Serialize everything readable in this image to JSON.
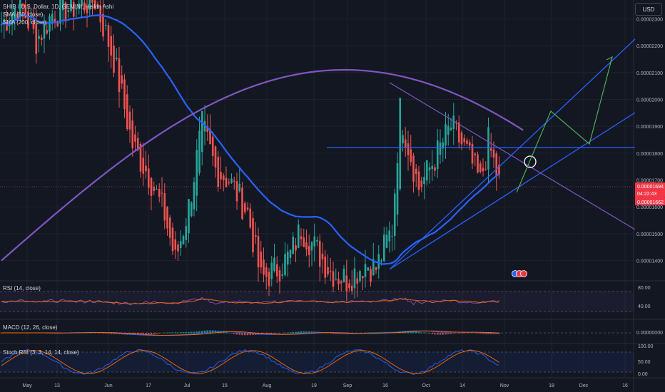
{
  "window": {
    "symbol_title": "SHIB / U.S. Dollar, 1D, GEMINI, Heikin Ashi",
    "indicator_1": "SMA (50, close)",
    "indicator_2": "SMA (200, close)",
    "currency_button": "USD"
  },
  "panes": {
    "rsi_label": "RSI (14, close)",
    "macd_label": "MACD (12, 26, close)",
    "stoch_label": "Stoch RSI (3, 3, 14, 14, close)"
  },
  "price_axis": {
    "ticks": [
      "0.00002300",
      "0.00002200",
      "0.00002100",
      "0.00002000",
      "0.00001900",
      "0.00001800",
      "0.00001700",
      "0.00001600",
      "0.00001500",
      "0.00001400"
    ],
    "last_price": "0.00001694",
    "countdown": "04:22:43",
    "sma_value": "0.00001662",
    "colors": {
      "last_price_bg": "#f23645",
      "sma_bg": "#f23645"
    }
  },
  "rsi_axis": {
    "ticks": [
      "80.00",
      "40.00"
    ]
  },
  "macd_axis": {
    "ticks": [
      "0.00000000"
    ]
  },
  "stoch_axis": {
    "ticks": [
      "100.00",
      "50.00",
      "0.00"
    ]
  },
  "time_axis": {
    "ticks": [
      "May",
      "13",
      "Jun",
      "17",
      "Jul",
      "15",
      "Aug",
      "19",
      "Sep",
      "16",
      "Oct",
      "14",
      "Nov",
      "18",
      "Dec",
      "16"
    ]
  },
  "colors": {
    "background": "#131722",
    "up_candle": "#26a69a",
    "down_candle": "#ef5350",
    "sma50": "#2962ff",
    "sma200": "#7e57c2",
    "trendline": "#2962ff",
    "projection": "#4caf50",
    "rsi": "#7e57c2",
    "macd": "#2962ff",
    "signal": "#ff6d00",
    "stoch_k": "#2962ff",
    "stoch_d": "#ff6d00"
  },
  "chart_data": {
    "type": "candlestick",
    "title": "SHIB / U.S. Dollar, 1D, GEMINI, Heikin Ashi",
    "ylim": [
      1.33e-05,
      2.37e-05
    ],
    "waypoints": [
      {
        "x": "May 1",
        "y": 2.28e-05
      },
      {
        "x": "May 8",
        "y": 2.36e-05
      },
      {
        "x": "May 14",
        "y": 2.22e-05
      },
      {
        "x": "May 20",
        "y": 2.32e-05
      },
      {
        "x": "Jun 5",
        "y": 2.37e-05
      },
      {
        "x": "Jun 12",
        "y": 2.15e-05
      },
      {
        "x": "Jun 19",
        "y": 1.83e-05
      },
      {
        "x": "Jun 25",
        "y": 1.72e-05
      },
      {
        "x": "Jul 1",
        "y": 1.57e-05
      },
      {
        "x": "Jul 5",
        "y": 1.4e-05
      },
      {
        "x": "Jul 10",
        "y": 1.6e-05
      },
      {
        "x": "Jul 15",
        "y": 1.9e-05
      },
      {
        "x": "Jul 20",
        "y": 1.74e-05
      },
      {
        "x": "Jul 25",
        "y": 1.7e-05
      },
      {
        "x": "Aug 1",
        "y": 1.58e-05
      },
      {
        "x": "Aug 6",
        "y": 1.33e-05
      },
      {
        "x": "Aug 12",
        "y": 1.37e-05
      },
      {
        "x": "Aug 17",
        "y": 1.42e-05
      },
      {
        "x": "Aug 21",
        "y": 1.52e-05
      },
      {
        "x": "Aug 26",
        "y": 1.45e-05
      },
      {
        "x": "Sep 1",
        "y": 1.36e-05
      },
      {
        "x": "Sep 7",
        "y": 1.33e-05
      },
      {
        "x": "Sep 14",
        "y": 1.39e-05
      },
      {
        "x": "Sep 18",
        "y": 1.37e-05
      },
      {
        "x": "Sep 24",
        "y": 1.52e-05
      },
      {
        "x": "Sep 27",
        "y": 1.96e-05
      },
      {
        "x": "Sep 30",
        "y": 1.83e-05
      },
      {
        "x": "Oct 4",
        "y": 1.67e-05
      },
      {
        "x": "Oct 10",
        "y": 1.78e-05
      },
      {
        "x": "Oct 16",
        "y": 1.9e-05
      },
      {
        "x": "Oct 22",
        "y": 1.8e-05
      },
      {
        "x": "Oct 27",
        "y": 1.69e-05
      },
      {
        "x": "Oct 30",
        "y": 1.84e-05
      },
      {
        "x": "Nov 3",
        "y": 1.69e-05
      }
    ]
  }
}
